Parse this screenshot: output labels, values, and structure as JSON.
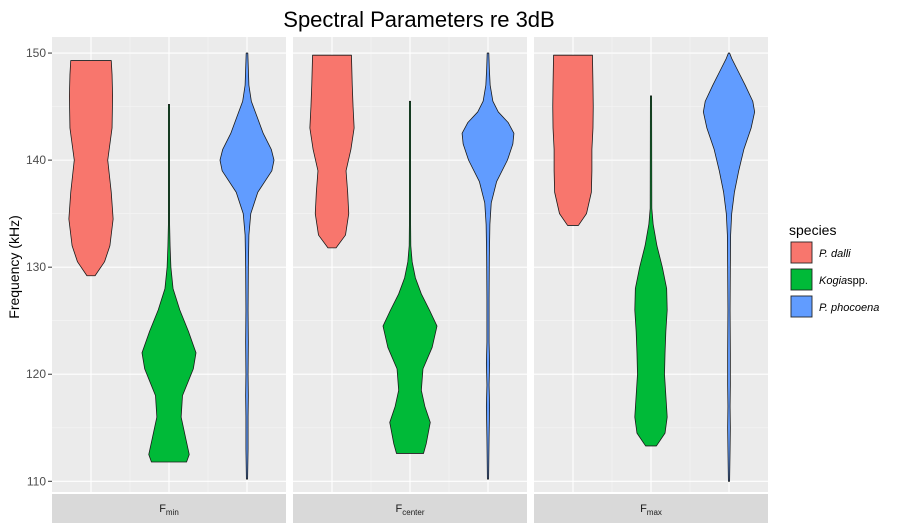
{
  "chart_data": {
    "type": "violin",
    "title": "Spectral Parameters re 3dB",
    "xlabel": "",
    "ylabel": "Frequency (kHz)",
    "ylim": [
      109,
      151.5
    ],
    "yticks": [
      110,
      120,
      130,
      140,
      150
    ],
    "grid": true,
    "legend": {
      "title": "species",
      "placement": "right",
      "entries": [
        {
          "name": "P. dalli",
          "prefix": "P. dalli",
          "suffix": "",
          "color": "#F8766D"
        },
        {
          "name": "Kogia spp.",
          "prefix": "Kogia",
          "suffix": "spp.",
          "color": "#00BA38"
        },
        {
          "name": "P. phocoena",
          "prefix": "P. phocoena",
          "suffix": "",
          "color": "#619CFF"
        }
      ]
    },
    "facets": [
      {
        "label_base": "F",
        "label_sub": "min",
        "violins": [
          {
            "species": "P. dalli",
            "profile": [
              [
                129.2,
                0.15
              ],
              [
                130.5,
                0.5
              ],
              [
                132,
                0.7
              ],
              [
                134.5,
                0.82
              ],
              [
                137,
                0.75
              ],
              [
                140,
                0.62
              ],
              [
                143,
                0.78
              ],
              [
                146,
                0.8
              ],
              [
                148,
                0.78
              ],
              [
                149.3,
                0.75
              ]
            ]
          },
          {
            "species": "Kogia spp.",
            "profile": [
              [
                111.8,
                0.65
              ],
              [
                112.5,
                0.75
              ],
              [
                114,
                0.62
              ],
              [
                116,
                0.45
              ],
              [
                118,
                0.5
              ],
              [
                120.5,
                0.9
              ],
              [
                122,
                1.0
              ],
              [
                124,
                0.72
              ],
              [
                126,
                0.4
              ],
              [
                128,
                0.15
              ],
              [
                130,
                0.07
              ],
              [
                132,
                0.04
              ],
              [
                134,
                0.02
              ],
              [
                145.2,
                0.01
              ]
            ]
          },
          {
            "species": "P. phocoena",
            "profile": [
              [
                110.2,
                0.02
              ],
              [
                113,
                0.04
              ],
              [
                116,
                0.04
              ],
              [
                118,
                0.05
              ],
              [
                120,
                0.04
              ],
              [
                123,
                0.05
              ],
              [
                126,
                0.04
              ],
              [
                130,
                0.05
              ],
              [
                133,
                0.07
              ],
              [
                135,
                0.14
              ],
              [
                137,
                0.4
              ],
              [
                139,
                0.92
              ],
              [
                140,
                1.0
              ],
              [
                141,
                0.9
              ],
              [
                142.5,
                0.6
              ],
              [
                144,
                0.38
              ],
              [
                145.5,
                0.16
              ],
              [
                147,
                0.07
              ],
              [
                148.5,
                0.05
              ],
              [
                150,
                0.03
              ]
            ]
          }
        ]
      },
      {
        "label_base": "F",
        "label_sub": "center",
        "violins": [
          {
            "species": "P. dalli",
            "profile": [
              [
                131.8,
                0.15
              ],
              [
                133,
                0.5
              ],
              [
                135,
                0.62
              ],
              [
                137,
                0.58
              ],
              [
                139,
                0.52
              ],
              [
                141,
                0.7
              ],
              [
                143,
                0.82
              ],
              [
                145,
                0.78
              ],
              [
                147,
                0.75
              ],
              [
                149.8,
                0.72
              ]
            ]
          },
          {
            "species": "Kogia spp.",
            "profile": [
              [
                112.6,
                0.5
              ],
              [
                113.5,
                0.6
              ],
              [
                115.5,
                0.75
              ],
              [
                117,
                0.55
              ],
              [
                118.5,
                0.42
              ],
              [
                120.5,
                0.48
              ],
              [
                122.5,
                0.82
              ],
              [
                124.5,
                1.0
              ],
              [
                126,
                0.72
              ],
              [
                127.5,
                0.42
              ],
              [
                129,
                0.2
              ],
              [
                130.5,
                0.08
              ],
              [
                132,
                0.03
              ],
              [
                134,
                0.02
              ],
              [
                145.5,
                0.01
              ]
            ]
          },
          {
            "species": "P. phocoena",
            "profile": [
              [
                110.2,
                0.02
              ],
              [
                114,
                0.04
              ],
              [
                117,
                0.06
              ],
              [
                119,
                0.04
              ],
              [
                121,
                0.06
              ],
              [
                123,
                0.04
              ],
              [
                127,
                0.04
              ],
              [
                131,
                0.05
              ],
              [
                134,
                0.07
              ],
              [
                136,
                0.12
              ],
              [
                138,
                0.32
              ],
              [
                140,
                0.72
              ],
              [
                141.5,
                0.92
              ],
              [
                142.5,
                0.96
              ],
              [
                143.5,
                0.75
              ],
              [
                144.5,
                0.38
              ],
              [
                145.5,
                0.18
              ],
              [
                147,
                0.08
              ],
              [
                148.5,
                0.05
              ],
              [
                150,
                0.03
              ]
            ]
          }
        ]
      },
      {
        "label_base": "F",
        "label_sub": "max",
        "violins": [
          {
            "species": "P. dalli",
            "profile": [
              [
                133.9,
                0.2
              ],
              [
                135,
                0.5
              ],
              [
                137,
                0.68
              ],
              [
                139,
                0.7
              ],
              [
                141,
                0.7
              ],
              [
                143,
                0.74
              ],
              [
                145,
                0.75
              ],
              [
                147,
                0.74
              ],
              [
                149.8,
                0.72
              ]
            ]
          },
          {
            "species": "Kogia spp.",
            "profile": [
              [
                113.3,
                0.2
              ],
              [
                114.5,
                0.52
              ],
              [
                116,
                0.6
              ],
              [
                118,
                0.55
              ],
              [
                120,
                0.5
              ],
              [
                122,
                0.52
              ],
              [
                124,
                0.55
              ],
              [
                126,
                0.6
              ],
              [
                128,
                0.58
              ],
              [
                130,
                0.42
              ],
              [
                132,
                0.22
              ],
              [
                134,
                0.08
              ],
              [
                135.5,
                0.03
              ],
              [
                146,
                0.01
              ]
            ]
          },
          {
            "species": "P. phocoena",
            "profile": [
              [
                110,
                0.01
              ],
              [
                113,
                0.04
              ],
              [
                115,
                0.05
              ],
              [
                117,
                0.04
              ],
              [
                119,
                0.05
              ],
              [
                122,
                0.05
              ],
              [
                126,
                0.04
              ],
              [
                130,
                0.05
              ],
              [
                133,
                0.06
              ],
              [
                135,
                0.1
              ],
              [
                137,
                0.2
              ],
              [
                139,
                0.36
              ],
              [
                141,
                0.55
              ],
              [
                143,
                0.82
              ],
              [
                144.5,
                0.95
              ],
              [
                145.5,
                0.88
              ],
              [
                147,
                0.6
              ],
              [
                148.5,
                0.3
              ],
              [
                149.5,
                0.1
              ],
              [
                150,
                0.02
              ]
            ]
          }
        ]
      }
    ]
  }
}
